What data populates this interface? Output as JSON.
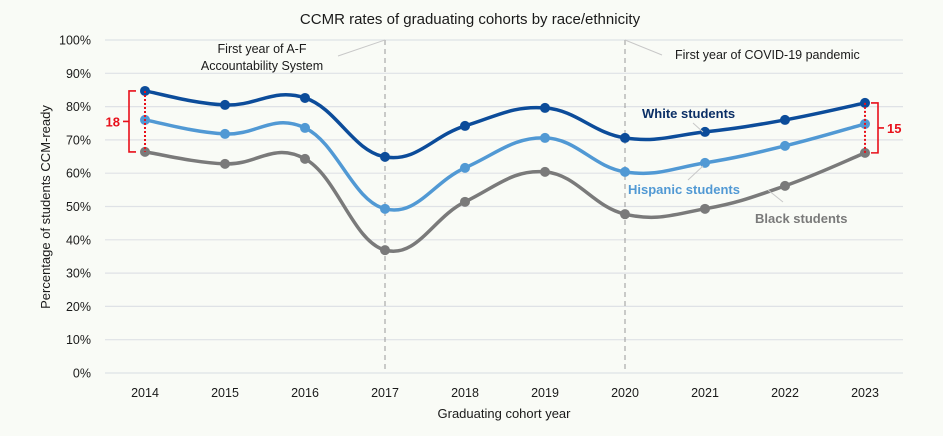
{
  "chart_data": {
    "type": "line",
    "title": "CCMR rates of graduating cohorts by race/ethnicity",
    "xlabel": "Graduating cohort year",
    "ylabel": "Percentage of students CCM-ready",
    "ylim": [
      0,
      100
    ],
    "y_ticks": [
      0,
      10,
      20,
      30,
      40,
      50,
      60,
      70,
      80,
      90,
      100
    ],
    "y_tick_labels": [
      "0%",
      "10%",
      "20%",
      "30%",
      "40%",
      "50%",
      "60%",
      "70%",
      "80%",
      "90%",
      "100%"
    ],
    "categories": [
      "2014",
      "2015",
      "2016",
      "2017",
      "2018",
      "2019",
      "2020",
      "2021",
      "2022",
      "2023"
    ],
    "grid": true,
    "legend": "inline-labels",
    "series": [
      {
        "name": "White students",
        "color": "#0c4c9a",
        "values": [
          84.7,
          80.5,
          82.6,
          64.9,
          74.2,
          79.6,
          70.6,
          72.4,
          76.0,
          81.1
        ]
      },
      {
        "name": "Hispanic students",
        "color": "#5199d4",
        "values": [
          76.0,
          71.8,
          73.6,
          49.3,
          61.6,
          70.6,
          60.4,
          63.1,
          68.2,
          74.8
        ]
      },
      {
        "name": "Black students",
        "color": "#7a7a7a",
        "values": [
          66.4,
          62.8,
          64.3,
          36.9,
          51.4,
          60.4,
          47.7,
          49.3,
          56.2,
          66.1
        ]
      }
    ],
    "annotations": [
      {
        "category": "2017",
        "text_lines": [
          "First year of A-F",
          "Accountability System"
        ]
      },
      {
        "category": "2020",
        "text_lines": [
          "First year of COVID-19 pandemic"
        ]
      }
    ],
    "gap_markers": [
      {
        "category": "2014",
        "label": "18",
        "side": "left",
        "color": "#e8101a"
      },
      {
        "category": "2023",
        "label": "15",
        "side": "right",
        "color": "#e8101a"
      }
    ]
  }
}
